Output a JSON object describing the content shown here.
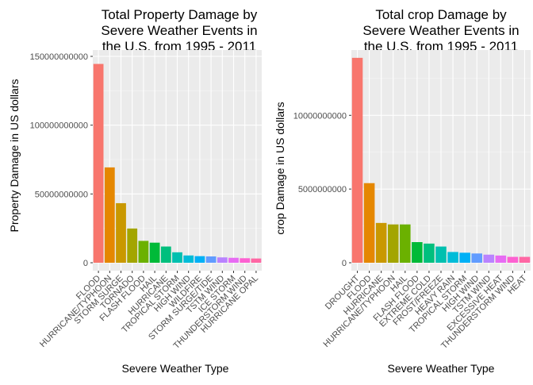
{
  "chart_data": [
    {
      "type": "bar",
      "title_lines": [
        "Total Property Damage by",
        "Severe Weather Events in",
        "the U.S. from 1995 - 2011"
      ],
      "xlabel": "Severe Weather Type",
      "ylabel": "Property Damage in US dollars",
      "ylim": [
        0,
        150000000000
      ],
      "y_ticks": [
        0,
        50000000000,
        100000000000,
        150000000000
      ],
      "y_tick_labels": [
        "0",
        "50000000000",
        "100000000000",
        "150000000000"
      ],
      "categories": [
        "FLOOD",
        "HURRICANE/TYPHOON",
        "STORM SURGE",
        "TORNADO",
        "FLASH FLOOD",
        "HAIL",
        "HURRICANE",
        "TROPICAL STORM",
        "HIGH WIND",
        "WILDFIRE",
        "STORM SURGE/TIDE",
        "TSTM WIND",
        "ICE STORM",
        "THUNDERSTORM WIND",
        "HURRICANE OPAL"
      ],
      "values": [
        144500000000,
        69300000000,
        43300000000,
        24900000000,
        15900000000,
        14600000000,
        11800000000,
        7600000000,
        5300000000,
        4800000000,
        4600000000,
        3900000000,
        3600000000,
        3300000000,
        3100000000
      ],
      "colors": [
        "#F8766D",
        "#E58700",
        "#C99800",
        "#A3A500",
        "#6BB100",
        "#00BA38",
        "#00BF7D",
        "#00C0AF",
        "#00BCD8",
        "#00B0F6",
        "#619CFF",
        "#B983FF",
        "#E76BF3",
        "#FD61D1",
        "#FF67A4"
      ],
      "grid": true,
      "legend": "none"
    },
    {
      "type": "bar",
      "title_lines": [
        "Total crop Damage by",
        "Severe Weather Events in",
        "the U.S. from 1995 - 2011"
      ],
      "xlabel": "Severe Weather Type",
      "ylabel": "crop Damage in US dollars",
      "ylim": [
        0,
        14000000000
      ],
      "y_ticks": [
        0,
        5000000000,
        10000000000
      ],
      "y_tick_labels": [
        "0",
        "5000000000",
        "10000000000"
      ],
      "categories": [
        "DROUGHT",
        "FLOOD",
        "HURRICANE",
        "HURRICANE/TYPHOON",
        "HAIL",
        "FLASH FLOOD",
        "EXTREME COLD",
        "FROST/FREEZE",
        "HEAVY RAIN",
        "TROPICAL STORM",
        "HIGH WIND",
        "TSTM WIND",
        "EXCESSIVE HEAT",
        "THUNDERSTORM WIND",
        "HEAT"
      ],
      "values": [
        13900000000,
        5400000000,
        2700000000,
        2600000000,
        2600000000,
        1400000000,
        1300000000,
        1100000000,
        730000000,
        680000000,
        630000000,
        550000000,
        490000000,
        400000000,
        400000000
      ],
      "colors": [
        "#F8766D",
        "#E58700",
        "#C99800",
        "#A3A500",
        "#6BB100",
        "#00BA38",
        "#00BF7D",
        "#00C0AF",
        "#00BCD8",
        "#00B0F6",
        "#619CFF",
        "#B983FF",
        "#E76BF3",
        "#FD61D1",
        "#FF67A4"
      ],
      "grid": true,
      "legend": "none"
    }
  ]
}
